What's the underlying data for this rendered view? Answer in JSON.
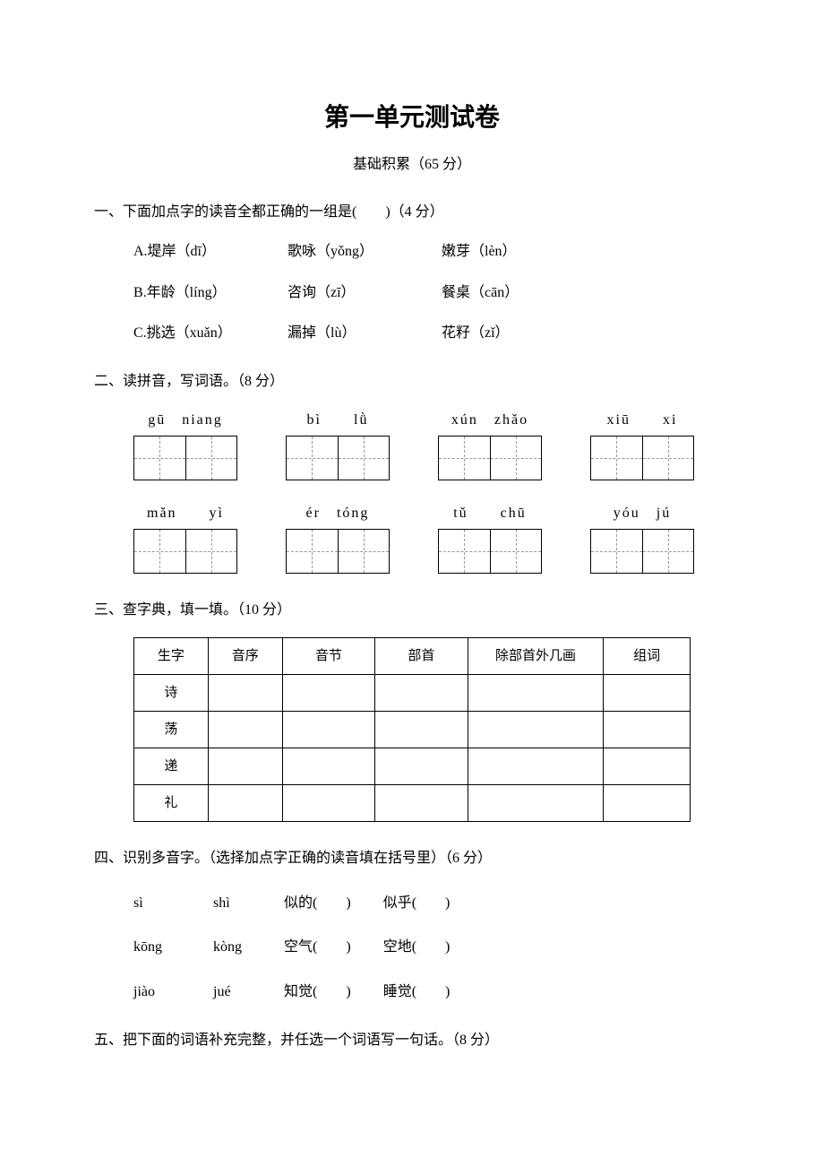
{
  "title": "第一单元测试卷",
  "subtitle": "基础积累（65 分）",
  "q1": {
    "header": "一、下面加点字的读音全都正确的一组是(　　)（4 分）",
    "options": {
      "A": {
        "c1": "A.堤岸（dī）",
        "c2": "歌咏（yǒng）",
        "c3": "嫩芽（lèn）"
      },
      "B": {
        "c1": "B.年龄（líng）",
        "c2": "咨询（zī）",
        "c3": "餐桌（cān）"
      },
      "C": {
        "c1": "C.挑选（xuǎn）",
        "c2": "漏掉（lù）",
        "c3": "花籽（zǐ）"
      }
    }
  },
  "q2": {
    "header": "二、读拼音，写词语。（8 分）",
    "row1": {
      "p1": "gū　niang",
      "p2": "bì　　lǜ",
      "p3": "xún　zhǎo",
      "p4": "xiū　　xi"
    },
    "row2": {
      "p1": "mǎn　　yì",
      "p2": "ér　tóng",
      "p3": "tǔ　　chū",
      "p4": "yóu　jú"
    }
  },
  "q3": {
    "header": "三、查字典，填一填。（10 分）",
    "headers": {
      "h1": "生字",
      "h2": "音序",
      "h3": "音节",
      "h4": "部首",
      "h5": "除部首外几画",
      "h6": "组词"
    },
    "rows": {
      "r1": "诗",
      "r2": "荡",
      "r3": "递",
      "r4": "礼"
    }
  },
  "q4": {
    "header": "四、识别多音字。（选择加点字正确的读音填在括号里）（6 分）",
    "rows": {
      "r1": {
        "py1": "sì",
        "py2": "shì",
        "w1": "似的(　　)",
        "w2": "似乎(　　)"
      },
      "r2": {
        "py1": "kōng",
        "py2": "kòng",
        "w1": "空气(　　)",
        "w2": "空地(　　)"
      },
      "r3": {
        "py1": "jiào",
        "py2": "jué",
        "w1": "知觉(　　)",
        "w2": "睡觉(　　)"
      }
    }
  },
  "q5": {
    "header": "五、把下面的词语补充完整，并任选一个词语写一句话。（8 分）"
  }
}
